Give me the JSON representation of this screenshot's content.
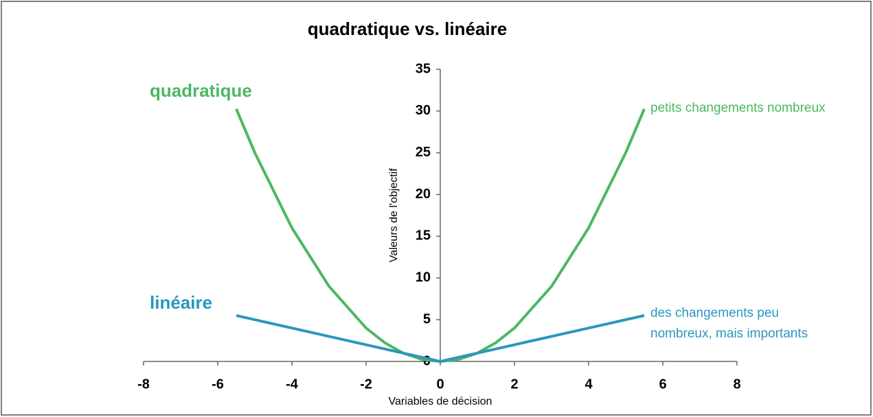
{
  "chart_data": {
    "type": "line",
    "title": "quadratique vs. linéaire",
    "xlabel": "Variables de décision",
    "ylabel": "Valeurs de l'objectif",
    "xlim": [
      -8,
      8
    ],
    "xticks": [
      -8,
      -6,
      -4,
      -2,
      0,
      2,
      4,
      6,
      8
    ],
    "ylim": [
      0,
      35
    ],
    "yticks": [
      0,
      5,
      10,
      15,
      20,
      25,
      30,
      35
    ],
    "series": [
      {
        "name": "quadratique",
        "color": "#4cb860",
        "x": [
          -5.5,
          -5,
          -4,
          -3,
          -2,
          -1.5,
          -1,
          -0.5,
          0,
          0.5,
          1,
          1.5,
          2,
          3,
          4,
          5,
          5.5
        ],
        "values": [
          30.25,
          25,
          16,
          9,
          4,
          2.25,
          1,
          0.25,
          0,
          0.25,
          1,
          2.25,
          4,
          9,
          16,
          25,
          30.25
        ]
      },
      {
        "name": "linéaire",
        "color": "#2a97bd",
        "x": [
          -5.5,
          -4,
          -2,
          -1,
          0,
          1,
          2,
          4,
          5.5
        ],
        "values": [
          5.5,
          4,
          2,
          1,
          0,
          1,
          2,
          4,
          5.5
        ]
      }
    ],
    "annotations": [
      {
        "lines": [
          "petits changements nombreux"
        ]
      },
      {
        "lines": [
          "des changements peu",
          "nombreux, mais importants"
        ]
      }
    ]
  }
}
